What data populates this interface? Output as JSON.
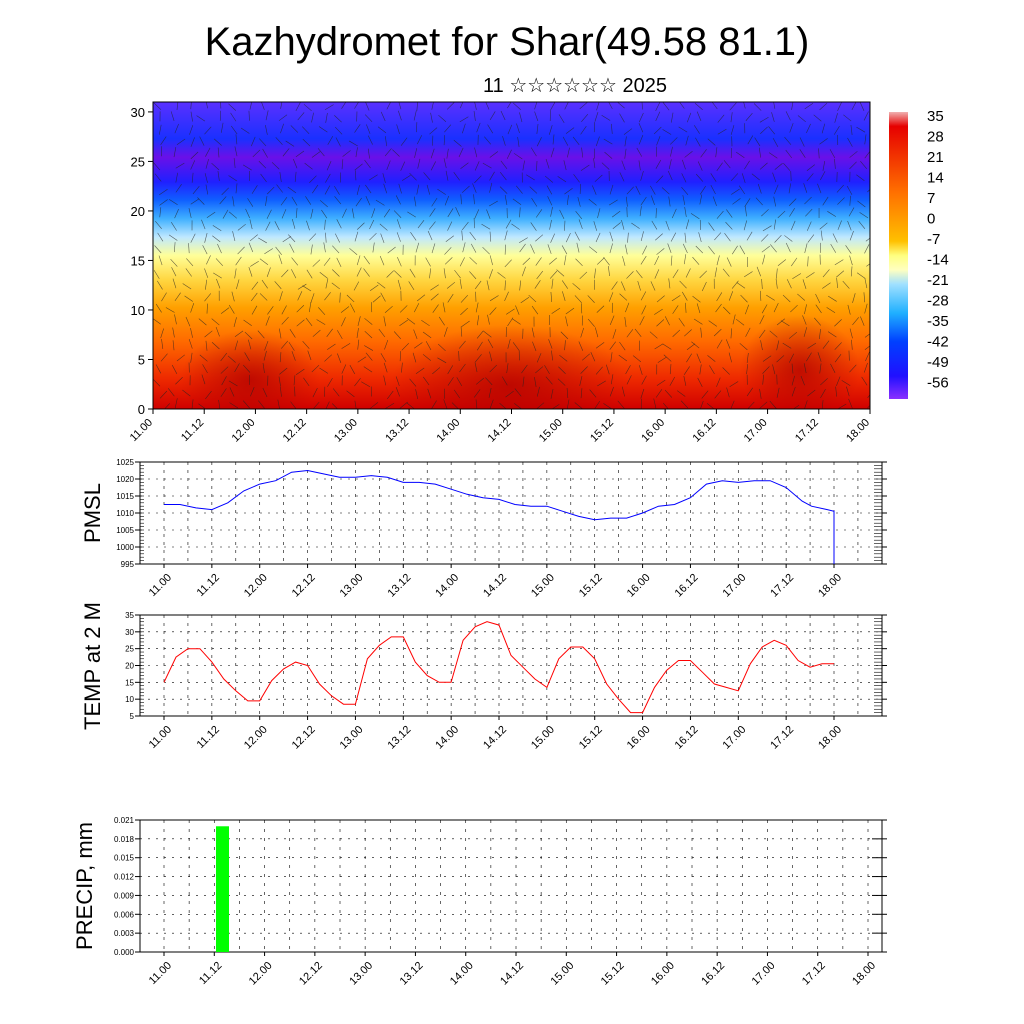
{
  "title": "Kazhydromet for Shar(49.58 81.1)",
  "subtitle": "11 ☆☆☆☆☆☆ 2025",
  "time_labels": [
    "11.00",
    "11.12",
    "12.00",
    "12.12",
    "13.00",
    "13.12",
    "14.00",
    "14.12",
    "15.00",
    "15.12",
    "16.00",
    "16.12",
    "17.00",
    "17.12",
    "18.00"
  ],
  "chart_data": [
    {
      "type": "heatmap",
      "description_label": "",
      "ylabel": "",
      "ylim": [
        0,
        31
      ],
      "y_ticks": [
        0,
        5,
        10,
        15,
        20,
        25,
        30
      ],
      "x_range": [
        0,
        84
      ],
      "colorbar_labels": [
        "35",
        "28",
        "21",
        "14",
        "7",
        "0",
        "-7",
        "-14",
        "-21",
        "-28",
        "-35",
        "-42",
        "-49",
        "-56"
      ],
      "colorbar_range": [
        -60,
        38
      ],
      "colors": {
        "cold": "#5a00ff",
        "mid": "#ffff99",
        "warm": "#e60000"
      },
      "overlay": "wind-barbs"
    },
    {
      "type": "line",
      "ylabel": "PMSL",
      "ylim": [
        995,
        1025
      ],
      "y_ticks": [
        995,
        1000,
        1005,
        1010,
        1015,
        1020,
        1025
      ],
      "x": [
        0,
        2,
        4,
        6,
        8,
        10,
        12,
        14,
        16,
        18,
        20,
        22,
        24,
        26,
        28,
        30,
        32,
        34,
        36,
        38,
        40,
        42,
        44,
        46,
        48,
        50,
        52,
        54,
        56,
        58,
        60,
        62,
        64,
        66,
        68,
        70,
        72,
        74,
        76,
        78,
        80
      ],
      "values": [
        1012.5,
        1012.5,
        1011.5,
        1011,
        1013,
        1016.5,
        1018.5,
        1019.5,
        1022,
        1022.5,
        1021.5,
        1020.5,
        1020.5,
        1021,
        1020.5,
        1019,
        1019,
        1018.5,
        1017,
        1015.5,
        1014.5,
        1014,
        1012.5,
        1012,
        1012,
        1010.5,
        1009,
        1008,
        1008.5,
        1008.5,
        1010,
        1012,
        1012.5,
        1014.5,
        1018.5,
        1019.5,
        1019,
        1019.5,
        1019.5,
        1017.5,
        1013.5
      ],
      "values_tail_x": [
        82,
        84,
        86,
        88,
        90,
        92,
        94,
        96,
        98,
        100
      ],
      "color": "#0000ff"
    },
    {
      "type": "line",
      "ylabel": "TEMP at 2 M",
      "ylim": [
        5,
        35
      ],
      "y_ticks": [
        5,
        10,
        15,
        20,
        25,
        30,
        35
      ],
      "values": [
        15,
        22.5,
        25,
        25,
        21,
        16,
        12.5,
        9.5,
        9.5,
        15.5,
        19,
        21,
        20,
        14.5,
        11,
        8.5,
        8.5,
        22,
        26,
        28.5,
        28.5,
        21,
        17,
        15,
        15,
        27.5,
        31.5,
        33,
        32,
        23,
        19.5,
        16,
        13.5,
        22,
        25.5,
        25.5,
        22,
        14.5,
        10,
        6,
        6,
        13.5,
        18.5,
        21.5,
        21.5,
        18,
        14.5,
        13.5,
        12.5,
        20.5,
        25.5,
        27.5,
        26,
        21.5,
        19.5,
        20.5,
        20.5
      ],
      "color": "#ff0000"
    },
    {
      "type": "bar",
      "ylabel": "PRECIP, mm",
      "ylim": [
        0,
        0.021
      ],
      "y_tick_labels": [
        "0.021",
        "0.018",
        "0.015",
        "0.012",
        "0.009",
        "0.006",
        "0.003",
        "0.000"
      ],
      "bars": [
        {
          "x": 6,
          "value": 0.02
        }
      ],
      "color": "#00ff00"
    }
  ]
}
